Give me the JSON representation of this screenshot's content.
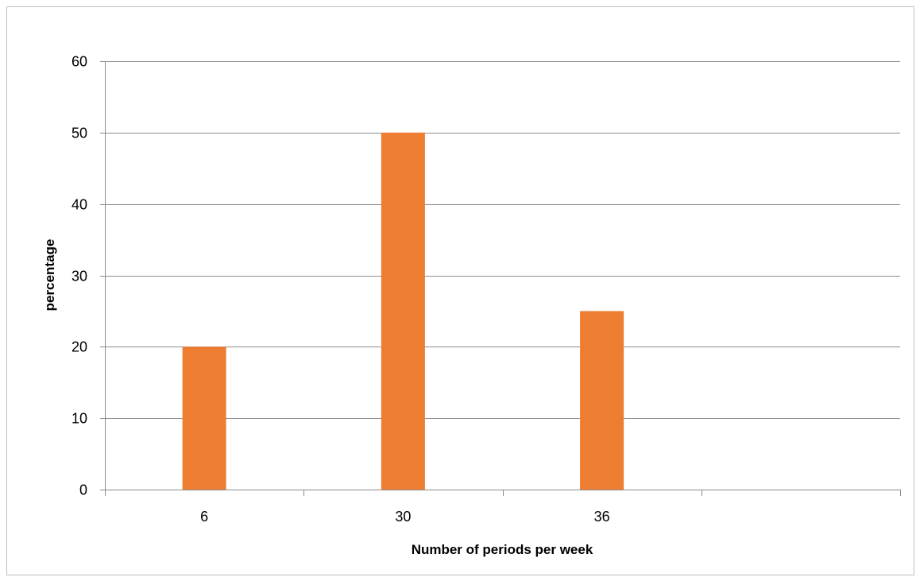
{
  "chart_data": {
    "type": "bar",
    "title": "",
    "xlabel": "Number of periods per week",
    "ylabel": "percentage",
    "categories": [
      "6",
      "30",
      "36",
      ""
    ],
    "values": [
      20,
      50,
      25,
      null
    ],
    "ylim": [
      0,
      60
    ],
    "yticks": [
      0,
      10,
      20,
      30,
      40,
      50,
      60
    ],
    "grid": true,
    "legend": "none",
    "colors": {
      "bar": "#ED7D31",
      "gridline": "#8C8C8C",
      "axis": "#8C8C8C",
      "frame": "#BFBFBF"
    }
  }
}
